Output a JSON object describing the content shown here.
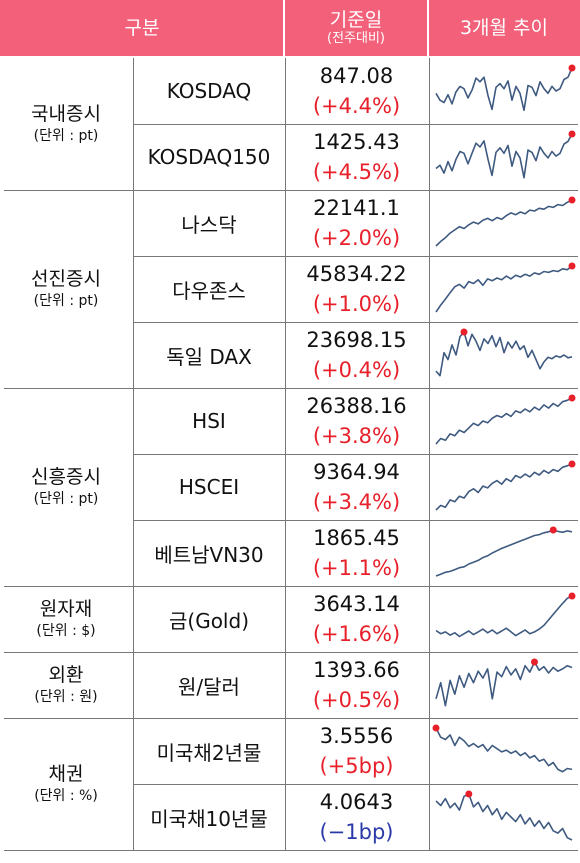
{
  "header": {
    "category": "구분",
    "base_date": "기준일",
    "base_date_sub": "(전주대비)",
    "trend": "3개월 추이"
  },
  "colors": {
    "header_bg": "#f2607a",
    "up": "#e8202a",
    "down": "#2a3aa8",
    "sparkline": "#3f5a80",
    "peak_marker": "#e8202a"
  },
  "groups": [
    {
      "name": "국내증시",
      "unit": "(단위 : pt)",
      "items": [
        {
          "name": "KOSDAQ",
          "value": "847.08",
          "change": "(+4.4%)",
          "direction": "up"
        },
        {
          "name": "KOSDAQ150",
          "value": "1425.43",
          "change": "(+4.5%)",
          "direction": "up"
        }
      ]
    },
    {
      "name": "선진증시",
      "unit": "(단위 : pt)",
      "items": [
        {
          "name": "나스닥",
          "value": "22141.1",
          "change": "(+2.0%)",
          "direction": "up"
        },
        {
          "name": "다우존스",
          "value": "45834.22",
          "change": "(+1.0%)",
          "direction": "up"
        },
        {
          "name": "독일 DAX",
          "value": "23698.15",
          "change": "(+0.4%)",
          "direction": "up"
        }
      ]
    },
    {
      "name": "신흥증시",
      "unit": "(단위 : pt)",
      "items": [
        {
          "name": "HSI",
          "value": "26388.16",
          "change": "(+3.8%)",
          "direction": "up"
        },
        {
          "name": "HSCEI",
          "value": "9364.94",
          "change": "(+3.4%)",
          "direction": "up"
        },
        {
          "name": "베트남VN30",
          "value": "1865.45",
          "change": "(+1.1%)",
          "direction": "up"
        }
      ]
    },
    {
      "name": "원자재",
      "unit": "(단위 : $)",
      "items": [
        {
          "name": "금(Gold)",
          "value": "3643.14",
          "change": "(+1.6%)",
          "direction": "up"
        }
      ]
    },
    {
      "name": "외환",
      "unit": "(단위 : 원)",
      "items": [
        {
          "name": "원/달러",
          "value": "1393.66",
          "change": "(+0.5%)",
          "direction": "up"
        }
      ]
    },
    {
      "name": "채권",
      "unit": "(단위 : %)",
      "items": [
        {
          "name": "미국채2년물",
          "value": "3.5556",
          "change": "(+5bp)",
          "direction": "up"
        },
        {
          "name": "미국채10년물",
          "value": "4.0643",
          "change": "(−1bp)",
          "direction": "down"
        }
      ]
    }
  ],
  "chart_data": {
    "type": "line",
    "series": [
      {
        "name": "KOSDAQ",
        "values": [
          0.45,
          0.3,
          0.25,
          0.42,
          0.22,
          0.48,
          0.6,
          0.55,
          0.35,
          0.52,
          0.78,
          0.7,
          0.8,
          0.4,
          0.1,
          0.58,
          0.66,
          0.55,
          0.72,
          0.3,
          0.6,
          0.45,
          0.08,
          0.62,
          0.58,
          0.4,
          0.7,
          0.55,
          0.45,
          0.6,
          0.5,
          0.55,
          0.75,
          0.8,
          1.0
        ]
      },
      {
        "name": "KOSDAQ150",
        "values": [
          0.25,
          0.32,
          0.15,
          0.4,
          0.2,
          0.45,
          0.62,
          0.58,
          0.35,
          0.58,
          0.8,
          0.72,
          0.85,
          0.45,
          0.1,
          0.6,
          0.7,
          0.58,
          0.75,
          0.3,
          0.62,
          0.48,
          0.05,
          0.65,
          0.6,
          0.42,
          0.72,
          0.58,
          0.48,
          0.62,
          0.52,
          0.58,
          0.78,
          0.84,
          1.0
        ]
      },
      {
        "name": "나스닥",
        "values": [
          0.0,
          0.1,
          0.18,
          0.28,
          0.35,
          0.42,
          0.38,
          0.46,
          0.52,
          0.48,
          0.56,
          0.6,
          0.55,
          0.62,
          0.58,
          0.66,
          0.72,
          0.68,
          0.74,
          0.7,
          0.78,
          0.76,
          0.82,
          0.8,
          0.86,
          0.84,
          0.9,
          0.88,
          0.95,
          1.0
        ]
      },
      {
        "name": "다우존스",
        "values": [
          0.0,
          0.15,
          0.28,
          0.42,
          0.55,
          0.6,
          0.52,
          0.66,
          0.62,
          0.7,
          0.58,
          0.72,
          0.68,
          0.74,
          0.7,
          0.78,
          0.72,
          0.8,
          0.76,
          0.82,
          0.78,
          0.85,
          0.82,
          0.88,
          0.86,
          0.9,
          0.88,
          0.94,
          0.92,
          1.0
        ]
      },
      {
        "name": "독일 DAX",
        "values": [
          0.15,
          0.05,
          0.55,
          0.4,
          0.72,
          0.5,
          0.9,
          1.0,
          0.7,
          0.95,
          0.8,
          0.6,
          0.85,
          0.75,
          0.92,
          0.68,
          0.88,
          0.55,
          0.78,
          0.65,
          0.8,
          0.62,
          0.7,
          0.45,
          0.6,
          0.4,
          0.2,
          0.35,
          0.45,
          0.42,
          0.48,
          0.45,
          0.5,
          0.44,
          0.46
        ]
      },
      {
        "name": "HSI",
        "values": [
          0.0,
          0.12,
          0.08,
          0.22,
          0.18,
          0.3,
          0.25,
          0.35,
          0.45,
          0.4,
          0.5,
          0.46,
          0.56,
          0.62,
          0.58,
          0.66,
          0.6,
          0.72,
          0.68,
          0.76,
          0.7,
          0.8,
          0.74,
          0.85,
          0.78,
          0.88,
          0.82,
          0.92,
          0.95,
          1.0
        ]
      },
      {
        "name": "HSCEI",
        "values": [
          0.0,
          0.1,
          0.06,
          0.22,
          0.18,
          0.3,
          0.26,
          0.4,
          0.46,
          0.38,
          0.52,
          0.48,
          0.58,
          0.64,
          0.56,
          0.68,
          0.62,
          0.75,
          0.7,
          0.78,
          0.72,
          0.82,
          0.76,
          0.86,
          0.8,
          0.88,
          0.84,
          0.93,
          0.96,
          1.0
        ]
      },
      {
        "name": "베트남VN30",
        "values": [
          0.0,
          0.04,
          0.08,
          0.1,
          0.14,
          0.18,
          0.2,
          0.26,
          0.3,
          0.34,
          0.4,
          0.44,
          0.5,
          0.55,
          0.6,
          0.64,
          0.68,
          0.72,
          0.76,
          0.8,
          0.84,
          0.88,
          0.9,
          0.94,
          0.96,
          1.0,
          0.97,
          0.95,
          0.98,
          0.96
        ]
      },
      {
        "name": "금(Gold)",
        "values": [
          0.25,
          0.18,
          0.22,
          0.15,
          0.2,
          0.12,
          0.18,
          0.24,
          0.16,
          0.22,
          0.28,
          0.2,
          0.26,
          0.18,
          0.24,
          0.3,
          0.22,
          0.14,
          0.2,
          0.26,
          0.18,
          0.22,
          0.28,
          0.36,
          0.48,
          0.6,
          0.72,
          0.84,
          0.95,
          1.0
        ]
      },
      {
        "name": "원/달러",
        "values": [
          0.2,
          0.55,
          0.05,
          0.6,
          0.3,
          0.7,
          0.45,
          0.75,
          0.55,
          0.8,
          0.65,
          0.85,
          0.2,
          0.78,
          0.68,
          0.9,
          0.72,
          0.85,
          0.62,
          0.92,
          0.78,
          1.0,
          0.82,
          0.9,
          0.76,
          0.88,
          0.8,
          0.85,
          0.92,
          0.88
        ]
      },
      {
        "name": "미국채2년물",
        "values": [
          1.0,
          0.8,
          0.75,
          0.85,
          0.62,
          0.8,
          0.72,
          0.6,
          0.66,
          0.58,
          0.64,
          0.5,
          0.62,
          0.55,
          0.48,
          0.52,
          0.45,
          0.5,
          0.4,
          0.46,
          0.35,
          0.4,
          0.28,
          0.32,
          0.18,
          0.25,
          0.1,
          0.05,
          0.12,
          0.1
        ]
      },
      {
        "name": "미국채10년물",
        "values": [
          0.85,
          0.75,
          0.9,
          0.7,
          0.8,
          0.65,
          0.95,
          1.0,
          0.72,
          0.82,
          0.62,
          0.75,
          0.55,
          0.68,
          0.45,
          0.6,
          0.5,
          0.4,
          0.55,
          0.35,
          0.48,
          0.3,
          0.42,
          0.25,
          0.38,
          0.2,
          0.15,
          0.25,
          0.05,
          0.0
        ]
      }
    ]
  }
}
